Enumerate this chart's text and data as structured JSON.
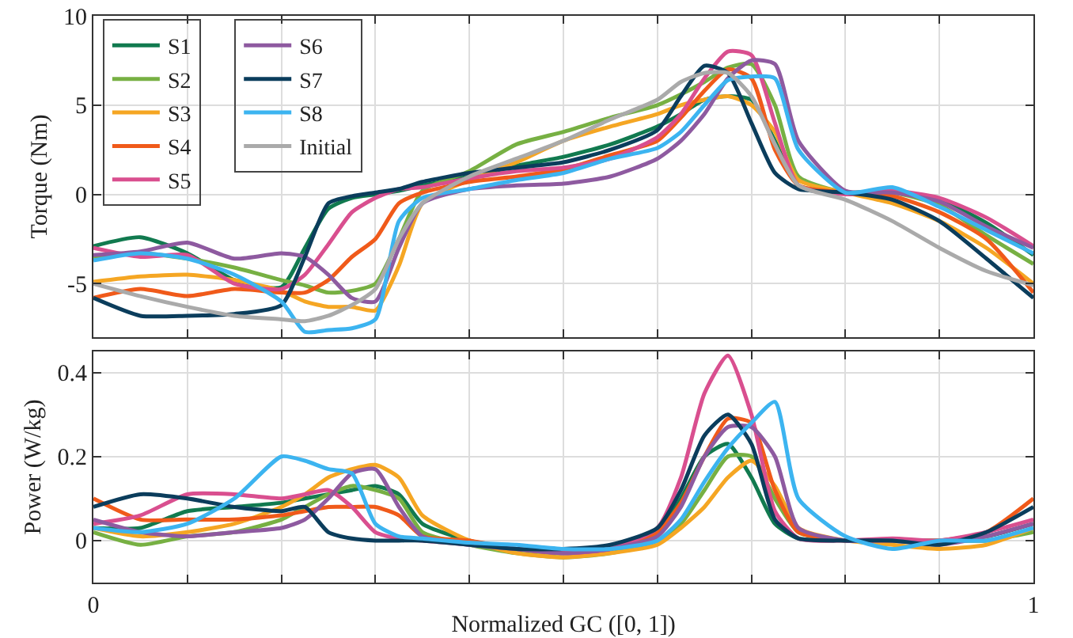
{
  "chart_data": [
    {
      "type": "line",
      "ylabel": "Torque (Nm)",
      "xlim": [
        0,
        1
      ],
      "xticks": [
        {
          "value": 0,
          "label": null
        },
        {
          "value": 0.1,
          "label": null
        },
        {
          "value": 0.2,
          "label": null
        },
        {
          "value": 0.3,
          "label": null
        },
        {
          "value": 0.4,
          "label": null
        },
        {
          "value": 0.5,
          "label": null
        },
        {
          "value": 0.6,
          "label": null
        },
        {
          "value": 0.7,
          "label": null
        },
        {
          "value": 0.8,
          "label": null
        },
        {
          "value": 0.9,
          "label": null
        },
        {
          "value": 1,
          "label": null
        }
      ],
      "ylim": [
        -8,
        10
      ],
      "yticks": [
        -5,
        0,
        5,
        10
      ],
      "grid": true,
      "legend": "top left",
      "tick_labels": "y",
      "x": [
        0,
        0.05,
        0.1,
        0.15,
        0.2,
        0.225,
        0.25,
        0.275,
        0.3,
        0.325,
        0.35,
        0.4,
        0.45,
        0.5,
        0.55,
        0.6,
        0.625,
        0.65,
        0.675,
        0.7,
        0.725,
        0.75,
        0.8,
        0.85,
        0.9,
        0.95,
        1
      ],
      "series": [
        {
          "name": "S1",
          "color": "#117a4f",
          "values": [
            -2.9,
            -2.4,
            -3.3,
            -4.8,
            -5.2,
            -3,
            -0.8,
            -0.2,
            0,
            0.2,
            0.5,
            1.0,
            1.6,
            2.1,
            2.8,
            3.8,
            4.5,
            5.3,
            5.5,
            5.3,
            3,
            0.5,
            0.1,
            0.2,
            -0.3,
            -1.6,
            -3.4
          ]
        },
        {
          "name": "S2",
          "color": "#77b043",
          "values": [
            -3.5,
            -3.3,
            -3.6,
            -4.1,
            -4.8,
            -5.1,
            -5.5,
            -5.4,
            -5.0,
            -2.5,
            0.2,
            1.3,
            2.8,
            3.5,
            4.3,
            5.0,
            5.6,
            6.3,
            7.1,
            7.3,
            5,
            1,
            0.1,
            0.1,
            -0.6,
            -2.3,
            -3.9
          ]
        },
        {
          "name": "S3",
          "color": "#f5a623",
          "values": [
            -4.9,
            -4.6,
            -4.5,
            -4.8,
            -5.4,
            -6.0,
            -6.3,
            -6.3,
            -6.5,
            -4,
            -0.5,
            0.8,
            1.8,
            3.0,
            3.8,
            4.5,
            5.0,
            5.3,
            5.5,
            5.0,
            3.5,
            0.8,
            0.1,
            -0.5,
            -1.5,
            -3.0,
            -5.0
          ]
        },
        {
          "name": "S4",
          "color": "#f05a1a",
          "values": [
            -5.8,
            -5.3,
            -5.7,
            -5.3,
            -5.5,
            -5.5,
            -4.8,
            -3.5,
            -2.5,
            -0.5,
            0.1,
            0.7,
            1.0,
            1.4,
            2.2,
            3.0,
            4.3,
            5.8,
            7.0,
            6.5,
            2.5,
            0.5,
            0.1,
            -0.1,
            -1.0,
            -2.5,
            -5.5
          ]
        },
        {
          "name": "S5",
          "color": "#d94f8f",
          "values": [
            -3.0,
            -3.5,
            -3.4,
            -5.0,
            -5.3,
            -4.5,
            -2.8,
            -1.0,
            -0.2,
            0.3,
            0.4,
            0.9,
            1.3,
            1.5,
            2.0,
            3.2,
            4.5,
            6.5,
            8.0,
            7.8,
            4.0,
            0.5,
            0,
            0.2,
            -0.2,
            -1.3,
            -2.9
          ]
        },
        {
          "name": "S6",
          "color": "#8e5aa0",
          "values": [
            -3.4,
            -3.2,
            -2.7,
            -3.6,
            -3.3,
            -3.5,
            -4.5,
            -5.8,
            -6.0,
            -3,
            -0.5,
            0.3,
            0.5,
            0.6,
            1.0,
            2.0,
            3.0,
            4.5,
            6.5,
            7.5,
            7.3,
            3,
            0.2,
            0.1,
            -0.4,
            -1.8,
            -3.0
          ]
        },
        {
          "name": "S7",
          "color": "#0b3d5c",
          "values": [
            -5.8,
            -6.8,
            -6.8,
            -6.7,
            -6.2,
            -3.5,
            -0.5,
            -0.1,
            0.1,
            0.3,
            0.7,
            1.2,
            1.5,
            1.8,
            2.5,
            3.6,
            5.5,
            7.2,
            6.8,
            4,
            1.2,
            0.3,
            0.1,
            -0.3,
            -1.5,
            -3.6,
            -5.8
          ]
        },
        {
          "name": "S8",
          "color": "#3cb4f0",
          "values": [
            -3.7,
            -3.3,
            -3.6,
            -4.5,
            -6.0,
            -7.7,
            -7.6,
            -7.5,
            -7.0,
            -1.5,
            -0.2,
            0.3,
            0.8,
            1.2,
            2.0,
            2.6,
            3.5,
            5.0,
            6.4,
            6.6,
            6.5,
            2.5,
            0.1,
            0.4,
            -0.7,
            -2.0,
            -3.3
          ]
        },
        {
          "name": "Initial",
          "color": "#aaaaaa",
          "values": [
            -5.0,
            -5.7,
            -6.3,
            -6.8,
            -7.0,
            -7.1,
            -6.8,
            -6.2,
            -5.3,
            -2.5,
            -0.5,
            1.0,
            2.0,
            3.0,
            4.2,
            5.3,
            6.3,
            6.8,
            6.8,
            5.5,
            2.8,
            0.5,
            -0.3,
            -1.5,
            -3.0,
            -4.3,
            -5.1
          ]
        }
      ]
    },
    {
      "type": "line",
      "xlabel": "Normalized GC ([0, 1])",
      "ylabel": "Power (W/kg)",
      "xlim": [
        0,
        1
      ],
      "xticks": [
        0,
        {
          "value": 0.1,
          "label": null
        },
        {
          "value": 0.2,
          "label": null
        },
        {
          "value": 0.3,
          "label": null
        },
        {
          "value": 0.4,
          "label": null
        },
        {
          "value": 0.5,
          "label": null
        },
        {
          "value": 0.6,
          "label": null
        },
        {
          "value": 0.7,
          "label": null
        },
        {
          "value": 0.8,
          "label": null
        },
        {
          "value": 0.9,
          "label": null
        },
        1
      ],
      "ylim": [
        -0.1,
        0.45
      ],
      "yticks": [
        0,
        0.2,
        0.4
      ],
      "grid": true,
      "x": [
        0,
        0.05,
        0.1,
        0.15,
        0.2,
        0.225,
        0.25,
        0.275,
        0.3,
        0.325,
        0.35,
        0.4,
        0.45,
        0.5,
        0.55,
        0.6,
        0.625,
        0.65,
        0.675,
        0.7,
        0.725,
        0.75,
        0.8,
        0.85,
        0.9,
        0.95,
        1
      ],
      "series": [
        {
          "color": "#117a4f",
          "values": [
            0.03,
            0.03,
            0.07,
            0.08,
            0.09,
            0.1,
            0.11,
            0.12,
            0.13,
            0.11,
            0.04,
            0,
            -0.02,
            -0.03,
            -0.02,
            0.02,
            0.1,
            0.2,
            0.23,
            0.15,
            0.04,
            0.005,
            0,
            0,
            0,
            0.01,
            0.04
          ]
        },
        {
          "color": "#77b043",
          "values": [
            0.02,
            -0.01,
            0.01,
            0.02,
            0.05,
            0.08,
            0.11,
            0.13,
            0.12,
            0.1,
            0.02,
            -0.01,
            -0.03,
            -0.04,
            -0.03,
            0.0,
            0.04,
            0.12,
            0.2,
            0.2,
            0.1,
            0.02,
            0,
            0,
            0,
            0,
            0.02
          ]
        },
        {
          "color": "#f5a623",
          "values": [
            0.03,
            0.01,
            0.02,
            0.04,
            0.08,
            0.11,
            0.15,
            0.17,
            0.18,
            0.15,
            0.06,
            0.0,
            -0.03,
            -0.04,
            -0.03,
            -0.01,
            0.03,
            0.08,
            0.15,
            0.19,
            0.13,
            0.03,
            0,
            -0.01,
            -0.02,
            -0.01,
            0.03
          ]
        },
        {
          "color": "#f05a1a",
          "values": [
            0.1,
            0.05,
            0.05,
            0.05,
            0.06,
            0.07,
            0.08,
            0.08,
            0.08,
            0.06,
            0.01,
            0,
            -0.02,
            -0.03,
            -0.02,
            0.02,
            0.09,
            0.2,
            0.29,
            0.28,
            0.12,
            0.02,
            0,
            0,
            0,
            0.02,
            0.1
          ]
        },
        {
          "color": "#d94f8f",
          "values": [
            0.04,
            0.06,
            0.11,
            0.11,
            0.1,
            0.11,
            0.12,
            0.08,
            0.02,
            0.005,
            0,
            -0.01,
            -0.02,
            -0.03,
            -0.02,
            0.03,
            0.15,
            0.35,
            0.44,
            0.3,
            0.07,
            0.005,
            0,
            0.005,
            0,
            0.02,
            0.05
          ]
        },
        {
          "color": "#8e5aa0",
          "values": [
            0.05,
            0.02,
            0.01,
            0.02,
            0.03,
            0.05,
            0.1,
            0.16,
            0.17,
            0.08,
            0.01,
            -0.01,
            -0.02,
            -0.03,
            -0.02,
            0.01,
            0.08,
            0.2,
            0.27,
            0.27,
            0.2,
            0.03,
            0,
            0,
            -0.01,
            0.01,
            0.04
          ]
        },
        {
          "color": "#0b3d5c",
          "values": [
            0.08,
            0.11,
            0.1,
            0.08,
            0.07,
            0.08,
            0.02,
            0.005,
            0,
            0,
            0,
            -0.01,
            -0.02,
            -0.02,
            -0.01,
            0.03,
            0.12,
            0.25,
            0.3,
            0.23,
            0.05,
            0.005,
            0,
            0,
            -0.01,
            0.02,
            0.08
          ]
        },
        {
          "color": "#3cb4f0",
          "values": [
            0.03,
            0.02,
            0.04,
            0.1,
            0.2,
            0.19,
            0.17,
            0.16,
            0.04,
            0.01,
            0.005,
            -0.005,
            -0.01,
            -0.02,
            -0.02,
            0.0,
            0.05,
            0.14,
            0.22,
            0.28,
            0.33,
            0.1,
            0.01,
            -0.02,
            0.0,
            0.0,
            0.03
          ]
        }
      ]
    }
  ]
}
